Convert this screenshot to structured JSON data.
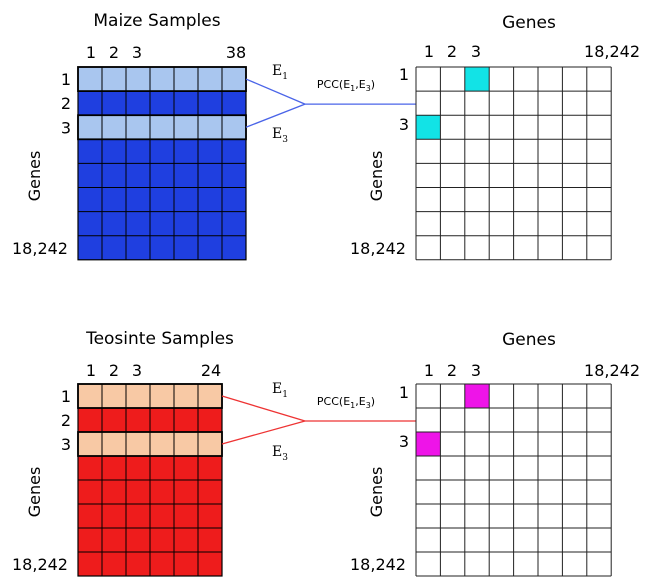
{
  "panels": [
    {
      "id": "maize",
      "matrix_title": "Maize Samples",
      "col_labels": [
        "1",
        "2",
        "3",
        "38"
      ],
      "row_labels": [
        "1",
        "2",
        "3"
      ],
      "row_end_label": "18,242",
      "row_axis_label": "Genes",
      "vec1": "E",
      "vec1_sub": "1",
      "vec2": "E",
      "vec2_sub": "3",
      "pcc": {
        "prefix": "PCC(E",
        "s1": "1",
        "mid": ",E",
        "s2": "3",
        "suffix": ")"
      },
      "grid_title": "Genes",
      "grid_col_labels": [
        "1",
        "2",
        "3"
      ],
      "grid_col_end_label": "18,242",
      "grid_row_labels": [
        "1",
        "3"
      ],
      "grid_row_end_label": "18,242",
      "grid_row_axis_label": "Genes",
      "colors": {
        "dark": "#1f3fe0",
        "light": "#a9c6ef",
        "line": "#4a64e8",
        "highlight": "#12e3e6"
      }
    },
    {
      "id": "teosinte",
      "matrix_title": "Teosinte Samples",
      "col_labels": [
        "1",
        "2",
        "3",
        "24"
      ],
      "row_labels": [
        "1",
        "2",
        "3"
      ],
      "row_end_label": "18,242",
      "row_axis_label": "Genes",
      "vec1": "E",
      "vec1_sub": "1",
      "vec2": "E",
      "vec2_sub": "3",
      "pcc": {
        "prefix": "PCC(E",
        "s1": "1",
        "mid": ",E",
        "s2": "3",
        "suffix": ")"
      },
      "grid_title": "Genes",
      "grid_col_labels": [
        "1",
        "2",
        "3"
      ],
      "grid_col_end_label": "18,242",
      "grid_row_labels": [
        "1",
        "3"
      ],
      "grid_row_end_label": "18,242",
      "grid_row_axis_label": "Genes",
      "colors": {
        "dark": "#ee1c1c",
        "light": "#f8c9a5",
        "line": "#ee3333",
        "highlight": "#ee14e8"
      }
    }
  ]
}
